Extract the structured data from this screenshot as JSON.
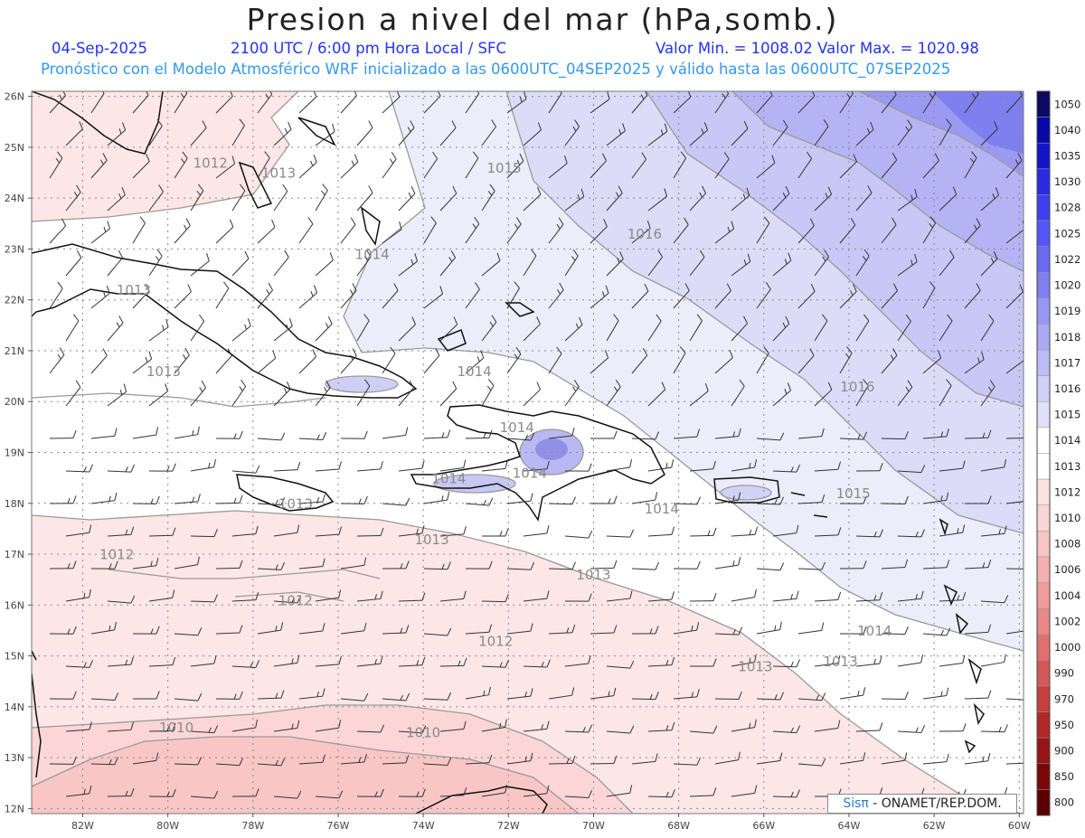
{
  "header": {
    "title": "Presion a nivel del mar (hPa,somb.)",
    "date": "04-Sep-2025",
    "time": "2100 UTC / 6:00 pm Hora Local / SFC",
    "minmax": "Valor Min. = 1008.02  Valor Max. = 1020.98",
    "model_info": "Pronóstico con el Modelo Atmosférico WRF inicializado a las 0600UTC_04SEP2025 y válido hasta las  0600UTC_07SEP2025"
  },
  "axes": {
    "lat_labels": [
      "26N",
      "25N",
      "24N",
      "23N",
      "22N",
      "21N",
      "20N",
      "19N",
      "18N",
      "17N",
      "16N",
      "15N",
      "14N",
      "13N",
      "12N"
    ],
    "lon_labels": [
      "82W",
      "80W",
      "78W",
      "76W",
      "74W",
      "72W",
      "70W",
      "68W",
      "66W",
      "64W",
      "62W",
      "60W"
    ]
  },
  "contour_labels": [
    {
      "text": "1012",
      "lon": -79.0,
      "lat": 24.6
    },
    {
      "text": "1013",
      "lon": -77.4,
      "lat": 24.4
    },
    {
      "text": "1013",
      "lon": -80.8,
      "lat": 22.1
    },
    {
      "text": "1013",
      "lon": -80.1,
      "lat": 20.5
    },
    {
      "text": "1014",
      "lon": -75.2,
      "lat": 22.8
    },
    {
      "text": "1015",
      "lon": -72.1,
      "lat": 24.5
    },
    {
      "text": "1016",
      "lon": -68.8,
      "lat": 23.2
    },
    {
      "text": "1014",
      "lon": -72.8,
      "lat": 20.5
    },
    {
      "text": "1016",
      "lon": -63.8,
      "lat": 20.2
    },
    {
      "text": "1014",
      "lon": -71.8,
      "lat": 19.4
    },
    {
      "text": "1014",
      "lon": -73.4,
      "lat": 18.4
    },
    {
      "text": "1014",
      "lon": -71.5,
      "lat": 18.5
    },
    {
      "text": "1015",
      "lon": -63.9,
      "lat": 18.1
    },
    {
      "text": "1014",
      "lon": -68.4,
      "lat": 17.8
    },
    {
      "text": "1013",
      "lon": -77.0,
      "lat": 17.9
    },
    {
      "text": "1013",
      "lon": -73.8,
      "lat": 17.2
    },
    {
      "text": "1012",
      "lon": -81.2,
      "lat": 16.9
    },
    {
      "text": "1013",
      "lon": -70.0,
      "lat": 16.5
    },
    {
      "text": "1012",
      "lon": -77.0,
      "lat": 16.0
    },
    {
      "text": "1012",
      "lon": -72.3,
      "lat": 15.2
    },
    {
      "text": "1014",
      "lon": -63.4,
      "lat": 15.4
    },
    {
      "text": "1013",
      "lon": -66.2,
      "lat": 14.7
    },
    {
      "text": "1013",
      "lon": -64.2,
      "lat": 14.8
    },
    {
      "text": "1010",
      "lon": -79.8,
      "lat": 13.5
    },
    {
      "text": "1010",
      "lon": -74.0,
      "lat": 13.4
    }
  ],
  "colorbar": {
    "levels": [
      "1050",
      "1040",
      "1035",
      "1030",
      "1028",
      "1025",
      "1022",
      "1020",
      "1019",
      "1018",
      "1017",
      "1016",
      "1015",
      "1014",
      "1013",
      "1012",
      "1010",
      "1008",
      "1006",
      "1004",
      "1002",
      "1000",
      "990",
      "970",
      "950",
      "900",
      "850",
      "800"
    ],
    "colors": [
      "#0a0a60",
      "#0808a8",
      "#1414c8",
      "#2a2ae0",
      "#3f3ff0",
      "#5555f8",
      "#6a6af0",
      "#8080f0",
      "#9898f4",
      "#aaaaf4",
      "#bcbcf8",
      "#cfcff8",
      "#e0e0fa",
      "#ffffff",
      "#ffffff",
      "#fde2e2",
      "#fbd4d4",
      "#f8c4c4",
      "#f4b0b0",
      "#f09c9c",
      "#e88888",
      "#e07070",
      "#d45858",
      "#c44040",
      "#b02828",
      "#961414",
      "#7a0808",
      "#5a0000"
    ]
  },
  "credit": {
    "brand": "Sisπ",
    "text": "- ONAMET/REP.DOM."
  }
}
